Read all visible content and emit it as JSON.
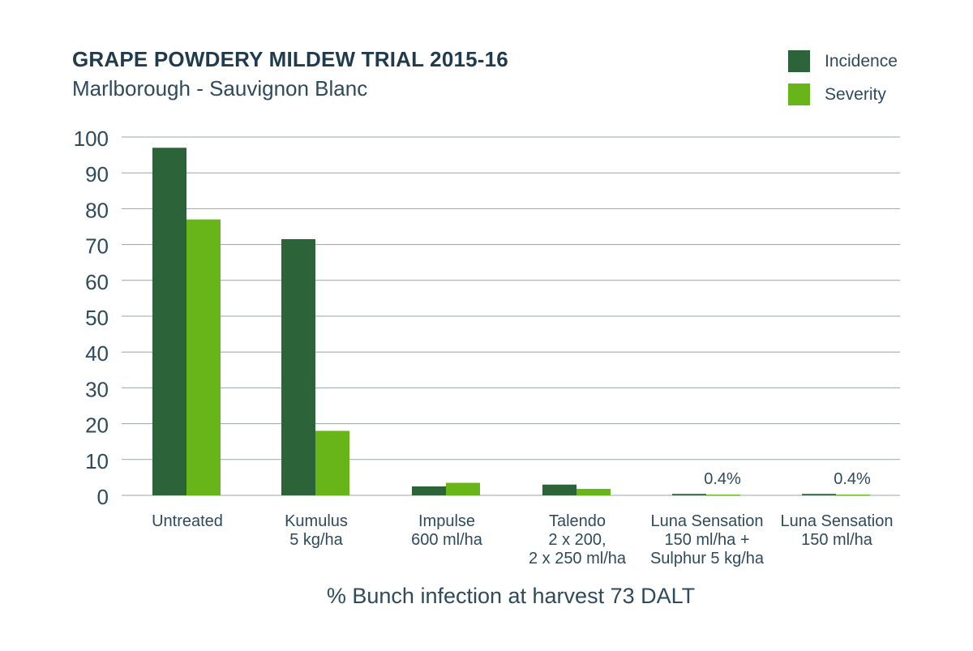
{
  "chart_data": {
    "type": "bar",
    "title": "GRAPE POWDERY MILDEW TRIAL 2015-16",
    "subtitle": "Marlborough - Sauvignon Blanc",
    "xlabel": "% Bunch infection at harvest 73 DALT",
    "ylabel": "",
    "ylim": [
      0,
      100
    ],
    "yticks": [
      0,
      10,
      20,
      30,
      40,
      50,
      60,
      70,
      80,
      90,
      100
    ],
    "grid": true,
    "legend_position": "top-right",
    "categories": [
      [
        "Untreated"
      ],
      [
        "Kumulus",
        "5 kg/ha"
      ],
      [
        "Impulse",
        "600 ml/ha"
      ],
      [
        "Talendo",
        "2 x 200,",
        "2 x 250 ml/ha"
      ],
      [
        "Luna Sensation",
        "150 ml/ha +",
        "Sulphur 5 kg/ha"
      ],
      [
        "Luna Sensation",
        "150 ml/ha"
      ]
    ],
    "series": [
      {
        "name": "Incidence",
        "color": "#2d6338",
        "values": [
          97,
          71.5,
          2.5,
          3,
          0.4,
          0.4
        ]
      },
      {
        "name": "Severity",
        "color": "#67b519",
        "values": [
          77,
          18,
          3.5,
          1.8,
          0.2,
          0.2
        ]
      }
    ],
    "annotations": [
      {
        "category_index": 4,
        "text": "0.4%"
      },
      {
        "category_index": 5,
        "text": "0.4%"
      }
    ]
  }
}
